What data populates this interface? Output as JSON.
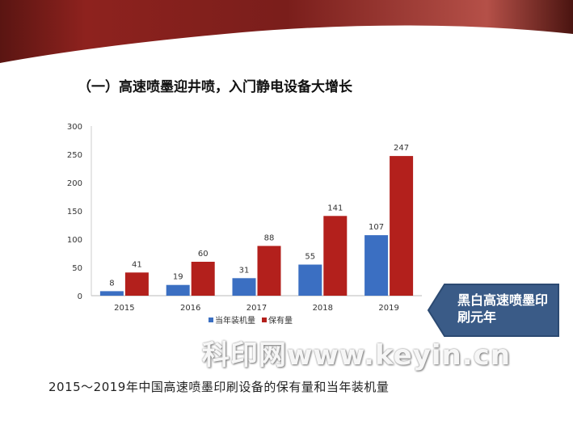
{
  "slide": {
    "title": "（一）高速喷墨迎井喷，入门静电设备大增长",
    "callout": "黑白高速喷墨印刷元年",
    "caption": "2015～2019年中国高速喷墨印刷设备的保有量和当年装机量",
    "watermark": "科印网www.keyin.cn",
    "colors": {
      "banner": "#8b1f1c",
      "callout": "#3a5b87"
    }
  },
  "chart_data": {
    "type": "bar",
    "categories": [
      "2015",
      "2016",
      "2017",
      "2018",
      "2019"
    ],
    "series": [
      {
        "name": "当年装机量",
        "color": "#3b6fc2",
        "values": [
          8,
          19,
          31,
          55,
          107
        ]
      },
      {
        "name": "保有量",
        "color": "#b3201c",
        "values": [
          41,
          60,
          88,
          141,
          247
        ]
      }
    ],
    "ylim": [
      0,
      300
    ],
    "yticks": [
      "0",
      "50",
      "100",
      "150",
      "200",
      "250",
      "300"
    ],
    "grid": false,
    "legend": "bottom",
    "data_labels": true
  }
}
